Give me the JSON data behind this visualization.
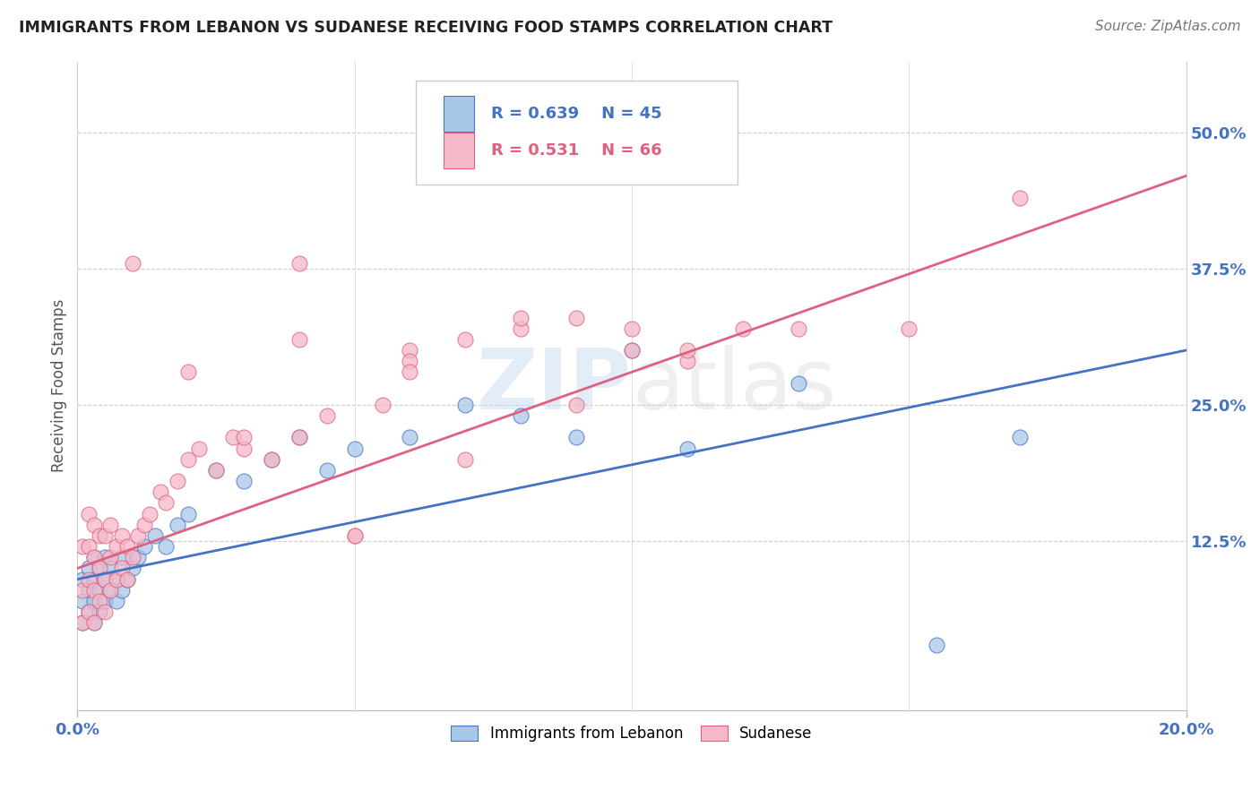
{
  "title": "IMMIGRANTS FROM LEBANON VS SUDANESE RECEIVING FOOD STAMPS CORRELATION CHART",
  "source": "Source: ZipAtlas.com",
  "ylabel": "Receiving Food Stamps",
  "ytick_vals": [
    0.125,
    0.25,
    0.375,
    0.5
  ],
  "ytick_labels": [
    "12.5%",
    "25.0%",
    "37.5%",
    "50.0%"
  ],
  "xmin": 0.0,
  "xmax": 0.2,
  "ymin": -0.03,
  "ymax": 0.565,
  "legend_r1": "R = 0.639",
  "legend_n1": "N = 45",
  "legend_r2": "R = 0.531",
  "legend_n2": "N = 66",
  "color_blue": "#a8c8e8",
  "color_pink": "#f4b8c8",
  "color_blue_line": "#4472c4",
  "color_pink_line": "#e06080",
  "watermark": "ZIPatlas",
  "blue_line_x0": 0.0,
  "blue_line_y0": 0.09,
  "blue_line_x1": 0.2,
  "blue_line_y1": 0.3,
  "pink_line_x0": 0.0,
  "pink_line_y0": 0.1,
  "pink_line_x1": 0.2,
  "pink_line_y1": 0.46,
  "lebanon_x": [
    0.001,
    0.001,
    0.001,
    0.002,
    0.002,
    0.002,
    0.003,
    0.003,
    0.003,
    0.003,
    0.004,
    0.004,
    0.004,
    0.005,
    0.005,
    0.005,
    0.006,
    0.006,
    0.007,
    0.007,
    0.008,
    0.008,
    0.009,
    0.01,
    0.011,
    0.012,
    0.014,
    0.016,
    0.018,
    0.02,
    0.025,
    0.03,
    0.035,
    0.04,
    0.045,
    0.05,
    0.06,
    0.07,
    0.08,
    0.09,
    0.1,
    0.11,
    0.13,
    0.155,
    0.17
  ],
  "lebanon_y": [
    0.05,
    0.07,
    0.09,
    0.06,
    0.08,
    0.1,
    0.05,
    0.07,
    0.09,
    0.11,
    0.06,
    0.08,
    0.1,
    0.07,
    0.09,
    0.11,
    0.08,
    0.1,
    0.07,
    0.09,
    0.08,
    0.11,
    0.09,
    0.1,
    0.11,
    0.12,
    0.13,
    0.12,
    0.14,
    0.15,
    0.19,
    0.18,
    0.2,
    0.22,
    0.19,
    0.21,
    0.22,
    0.25,
    0.24,
    0.22,
    0.3,
    0.21,
    0.27,
    0.03,
    0.22
  ],
  "sudanese_x": [
    0.001,
    0.001,
    0.001,
    0.002,
    0.002,
    0.002,
    0.002,
    0.003,
    0.003,
    0.003,
    0.003,
    0.004,
    0.004,
    0.004,
    0.005,
    0.005,
    0.005,
    0.006,
    0.006,
    0.006,
    0.007,
    0.007,
    0.008,
    0.008,
    0.009,
    0.009,
    0.01,
    0.011,
    0.012,
    0.013,
    0.015,
    0.016,
    0.018,
    0.02,
    0.022,
    0.025,
    0.028,
    0.03,
    0.035,
    0.04,
    0.045,
    0.05,
    0.055,
    0.06,
    0.07,
    0.08,
    0.09,
    0.1,
    0.11,
    0.12,
    0.01,
    0.02,
    0.03,
    0.04,
    0.05,
    0.06,
    0.07,
    0.09,
    0.11,
    0.13,
    0.04,
    0.06,
    0.08,
    0.1,
    0.15,
    0.17
  ],
  "sudanese_y": [
    0.05,
    0.08,
    0.12,
    0.06,
    0.09,
    0.12,
    0.15,
    0.05,
    0.08,
    0.11,
    0.14,
    0.07,
    0.1,
    0.13,
    0.06,
    0.09,
    0.13,
    0.08,
    0.11,
    0.14,
    0.09,
    0.12,
    0.1,
    0.13,
    0.09,
    0.12,
    0.11,
    0.13,
    0.14,
    0.15,
    0.17,
    0.16,
    0.18,
    0.2,
    0.21,
    0.19,
    0.22,
    0.21,
    0.2,
    0.22,
    0.24,
    0.13,
    0.25,
    0.3,
    0.2,
    0.32,
    0.25,
    0.3,
    0.29,
    0.32,
    0.38,
    0.28,
    0.22,
    0.31,
    0.13,
    0.29,
    0.31,
    0.33,
    0.3,
    0.32,
    0.38,
    0.28,
    0.33,
    0.32,
    0.32,
    0.44
  ]
}
